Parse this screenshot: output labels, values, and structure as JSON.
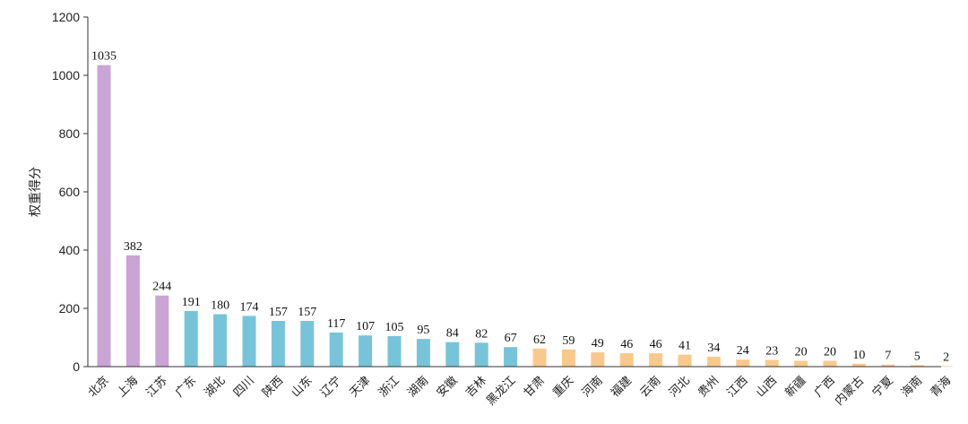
{
  "chart_data": {
    "type": "bar",
    "ylabel": "权重得分",
    "xlabel": "",
    "title": "",
    "ylim": [
      0,
      1200
    ],
    "yticks": [
      0,
      200,
      400,
      600,
      800,
      1000,
      1200
    ],
    "grid": false,
    "legend": "none",
    "colors": {
      "purple": "#C9A4D4",
      "blue": "#77C4DA",
      "orange": "#F9C98C",
      "axis": "#333333"
    },
    "categories": [
      "北京",
      "上海",
      "江苏",
      "广东",
      "湖北",
      "四川",
      "陕西",
      "山东",
      "辽宁",
      "天津",
      "浙江",
      "湖南",
      "安徽",
      "吉林",
      "黑龙江",
      "甘肃",
      "重庆",
      "河南",
      "福建",
      "云南",
      "河北",
      "贵州",
      "江西",
      "山西",
      "新疆",
      "广西",
      "内蒙古",
      "宁夏",
      "海南",
      "青海"
    ],
    "values": [
      1035,
      382,
      244,
      191,
      180,
      174,
      157,
      157,
      117,
      107,
      105,
      95,
      84,
      82,
      67,
      62,
      59,
      49,
      46,
      46,
      41,
      34,
      24,
      23,
      20,
      20,
      10,
      7,
      5,
      2
    ],
    "bar_colors": [
      "purple",
      "purple",
      "purple",
      "blue",
      "blue",
      "blue",
      "blue",
      "blue",
      "blue",
      "blue",
      "blue",
      "blue",
      "blue",
      "blue",
      "blue",
      "orange",
      "orange",
      "orange",
      "orange",
      "orange",
      "orange",
      "orange",
      "orange",
      "orange",
      "orange",
      "orange",
      "orange",
      "orange",
      "orange",
      "orange"
    ]
  }
}
